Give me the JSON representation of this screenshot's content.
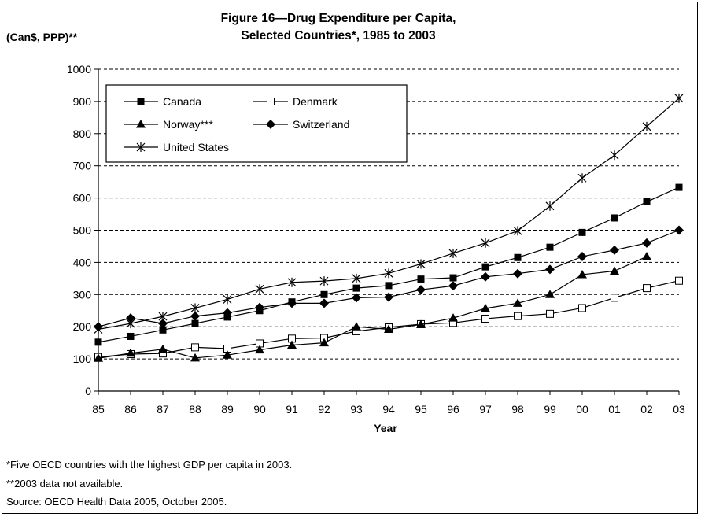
{
  "figure": {
    "title_line1": "Figure 16—Drug Expenditure per Capita,",
    "title_line2": "Selected Countries*, 1985 to 2003",
    "ylabel": "(Can$, PPP)**",
    "xlabel": "Year",
    "notes": [
      "*Five OECD countries with the highest GDP per capita in 2003.",
      "**2003 data not available.",
      "Source: OECD Health Data 2005, October 2005."
    ]
  },
  "chart_data": {
    "type": "line",
    "title": "Figure 16—Drug Expenditure per Capita, Selected Countries*, 1985 to 2003",
    "xlabel": "Year",
    "ylabel": "(Can$, PPP)**",
    "categories": [
      "85",
      "86",
      "87",
      "88",
      "89",
      "90",
      "91",
      "92",
      "93",
      "94",
      "95",
      "96",
      "97",
      "98",
      "99",
      "00",
      "01",
      "02",
      "03"
    ],
    "ylim": [
      0,
      1000
    ],
    "yticks": [
      0,
      100,
      200,
      300,
      400,
      500,
      600,
      700,
      800,
      900,
      1000
    ],
    "grid": "horizontal dashed",
    "legend_position": "top-left",
    "series": [
      {
        "name": "Canada",
        "marker": "filled-square",
        "values": [
          152,
          170,
          190,
          210,
          230,
          250,
          277,
          300,
          320,
          328,
          348,
          352,
          386,
          415,
          447,
          493,
          538,
          588,
          633
        ]
      },
      {
        "name": "Denmark",
        "marker": "open-square",
        "values": [
          106,
          115,
          117,
          136,
          132,
          148,
          163,
          165,
          186,
          198,
          208,
          212,
          225,
          233,
          240,
          258,
          290,
          320,
          343
        ]
      },
      {
        "name": "Norway***",
        "marker": "triangle",
        "values": [
          102,
          118,
          130,
          103,
          112,
          128,
          143,
          150,
          200,
          192,
          207,
          227,
          257,
          273,
          300,
          362,
          373,
          418,
          null
        ]
      },
      {
        "name": "Switzerland",
        "marker": "diamond",
        "values": [
          200,
          227,
          210,
          233,
          243,
          260,
          273,
          273,
          290,
          292,
          315,
          327,
          355,
          365,
          378,
          418,
          438,
          460,
          500
        ]
      },
      {
        "name": "United States",
        "marker": "star",
        "values": [
          192,
          210,
          232,
          258,
          285,
          317,
          338,
          342,
          350,
          366,
          395,
          428,
          460,
          498,
          575,
          662,
          733,
          822,
          910
        ]
      }
    ]
  }
}
